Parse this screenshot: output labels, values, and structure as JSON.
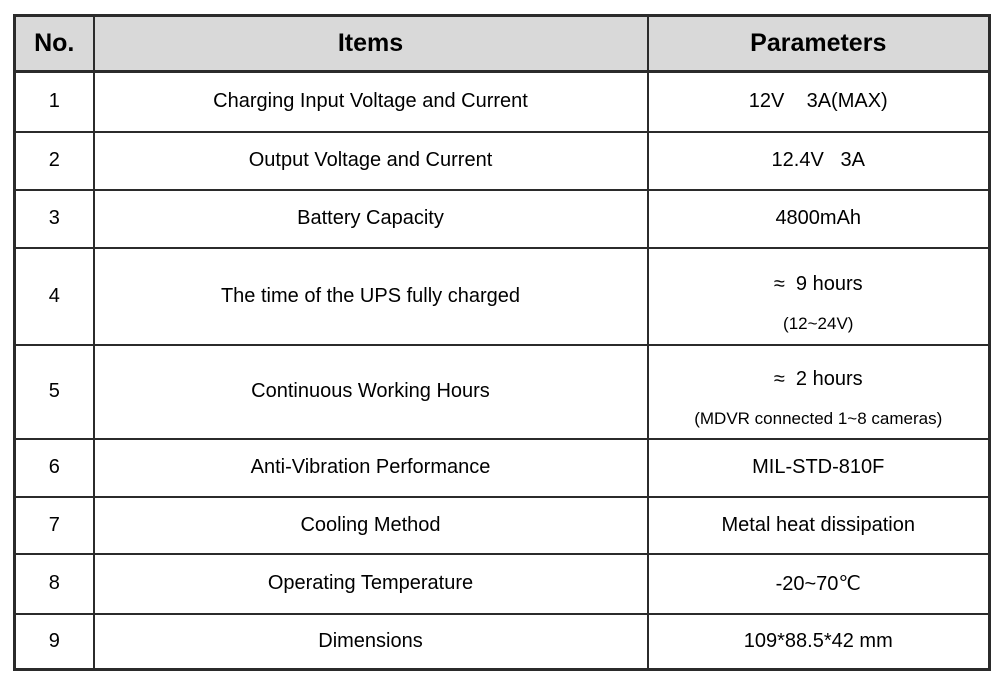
{
  "table": {
    "colors": {
      "header_bg": "#d9d9d9",
      "border": "#2b2b2b",
      "text": "#000000"
    },
    "headers": {
      "no": "No.",
      "items": "Items",
      "parameters": "Parameters"
    },
    "rows": [
      {
        "no": "1",
        "item": "Charging Input Voltage and Current",
        "param": "12V    3A(MAX)"
      },
      {
        "no": "2",
        "item": "Output Voltage and Current",
        "param": "12.4V   3A"
      },
      {
        "no": "3",
        "item": "Battery Capacity",
        "param": "4800mAh"
      },
      {
        "no": "4",
        "item": "The time of the UPS fully charged",
        "param": "≈  9 hours",
        "param_note": "(12~24V)"
      },
      {
        "no": "5",
        "item": "Continuous Working Hours",
        "param": "≈  2 hours",
        "param_note": "(MDVR connected 1~8 cameras)"
      },
      {
        "no": "6",
        "item": "Anti-Vibration Performance",
        "param": "MIL-STD-810F"
      },
      {
        "no": "7",
        "item": "Cooling Method",
        "param": "Metal heat dissipation"
      },
      {
        "no": "8",
        "item": "Operating Temperature",
        "param": "-20~70℃"
      },
      {
        "no": "9",
        "item": "Dimensions",
        "param": "109*88.5*42 mm"
      }
    ]
  }
}
